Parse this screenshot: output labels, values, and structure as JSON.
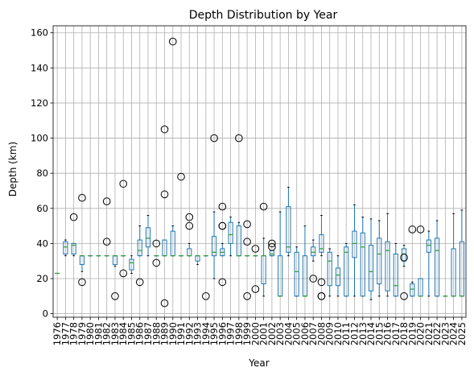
{
  "chart_data": {
    "type": "box",
    "title": "Depth Distribution by Year",
    "xlabel": "Year",
    "ylabel": "Depth (km)",
    "ylim": [
      -2,
      164
    ],
    "yticks": [
      0,
      20,
      40,
      60,
      80,
      100,
      120,
      140,
      160
    ],
    "grid": true,
    "colors": {
      "box": "#1f77b4",
      "median": "#2ca02c",
      "flier": "#000000",
      "grid": "#b0b0b0"
    },
    "categories": [
      "1976",
      "1977",
      "1978",
      "1979",
      "1980",
      "1981",
      "1982",
      "1983",
      "1984",
      "1985",
      "1986",
      "1987",
      "1988",
      "1989",
      "1990",
      "1991",
      "1992",
      "1993",
      "1994",
      "1995",
      "1996",
      "1997",
      "1998",
      "1999",
      "2000",
      "2001",
      "2002",
      "2003",
      "2004",
      "2005",
      "2006",
      "2007",
      "2008",
      "2009",
      "2010",
      "2011",
      "2012",
      "2013",
      "2014",
      "2015",
      "2016",
      "2017",
      "2018",
      "2019",
      "2020",
      "2021",
      "2022",
      "2023",
      "2024",
      "2025"
    ],
    "boxes": [
      {
        "year": "1976",
        "min": 23,
        "q1": 23,
        "med": 23,
        "q3": 23,
        "max": 23,
        "fliers": []
      },
      {
        "year": "1977",
        "min": 33,
        "q1": 34,
        "med": 38,
        "q3": 41,
        "max": 42,
        "fliers": []
      },
      {
        "year": "1978",
        "min": 33,
        "q1": 34,
        "med": 39,
        "q3": 40,
        "max": 40,
        "fliers": [
          55
        ]
      },
      {
        "year": "1979",
        "min": 24,
        "q1": 28,
        "med": 33,
        "q3": 33,
        "max": 33,
        "fliers": [
          66,
          18
        ]
      },
      {
        "year": "1980",
        "min": 33,
        "q1": 33,
        "med": 33,
        "q3": 33,
        "max": 33,
        "fliers": []
      },
      {
        "year": "1981",
        "min": 33,
        "q1": 33,
        "med": 33,
        "q3": 33,
        "max": 33,
        "fliers": []
      },
      {
        "year": "1982",
        "min": 33,
        "q1": 33,
        "med": 33,
        "q3": 33,
        "max": 33,
        "fliers": [
          64,
          41
        ]
      },
      {
        "year": "1983",
        "min": 27,
        "q1": 28,
        "med": 33,
        "q3": 33,
        "max": 33,
        "fliers": [
          10
        ]
      },
      {
        "year": "1984",
        "min": 33,
        "q1": 33,
        "med": 33,
        "q3": 33,
        "max": 33,
        "fliers": [
          74,
          23
        ]
      },
      {
        "year": "1985",
        "min": 23,
        "q1": 25,
        "med": 29,
        "q3": 31,
        "max": 33,
        "fliers": []
      },
      {
        "year": "1986",
        "min": 33,
        "q1": 33,
        "med": 36,
        "q3": 42,
        "max": 50,
        "fliers": [
          18
        ]
      },
      {
        "year": "1987",
        "min": 33,
        "q1": 38,
        "med": 43,
        "q3": 49,
        "max": 56,
        "fliers": []
      },
      {
        "year": "1988",
        "min": 33,
        "q1": 33,
        "med": 33,
        "q3": 33,
        "max": 33,
        "fliers": [
          40,
          29
        ]
      },
      {
        "year": "1989",
        "min": 33,
        "q1": 33,
        "med": 33,
        "q3": 42,
        "max": 42,
        "fliers": [
          105,
          68,
          6
        ]
      },
      {
        "year": "1990",
        "min": 33,
        "q1": 33,
        "med": 33,
        "q3": 47,
        "max": 50,
        "fliers": [
          155
        ]
      },
      {
        "year": "1991",
        "min": 33,
        "q1": 33,
        "med": 33,
        "q3": 33,
        "max": 33,
        "fliers": [
          78
        ]
      },
      {
        "year": "1992",
        "min": 33,
        "q1": 33,
        "med": 33,
        "q3": 37,
        "max": 40,
        "fliers": [
          55,
          50
        ]
      },
      {
        "year": "1993",
        "min": 28,
        "q1": 30,
        "med": 33,
        "q3": 33,
        "max": 33,
        "fliers": []
      },
      {
        "year": "1994",
        "min": 33,
        "q1": 33,
        "med": 33,
        "q3": 33,
        "max": 33,
        "fliers": [
          10
        ]
      },
      {
        "year": "1995",
        "min": 20,
        "q1": 33,
        "med": 35,
        "q3": 44,
        "max": 58,
        "fliers": [
          100
        ]
      },
      {
        "year": "1996",
        "min": 33,
        "q1": 33,
        "med": 35,
        "q3": 37,
        "max": 40,
        "fliers": [
          61,
          50,
          50,
          18
        ]
      },
      {
        "year": "1997",
        "min": 33,
        "q1": 40,
        "med": 45,
        "q3": 52,
        "max": 55,
        "fliers": []
      },
      {
        "year": "1998",
        "min": 33,
        "q1": 33,
        "med": 33,
        "q3": 50,
        "max": 52,
        "fliers": [
          100
        ]
      },
      {
        "year": "1999",
        "min": 33,
        "q1": 33,
        "med": 33,
        "q3": 33,
        "max": 33,
        "fliers": [
          51,
          41,
          10
        ]
      },
      {
        "year": "2000",
        "min": 33,
        "q1": 33,
        "med": 33,
        "q3": 33,
        "max": 33,
        "fliers": [
          37,
          14
        ]
      },
      {
        "year": "2001",
        "min": 10,
        "q1": 17,
        "med": 33,
        "q3": 33,
        "max": 43,
        "fliers": [
          61
        ]
      },
      {
        "year": "2002",
        "min": 33,
        "q1": 33,
        "med": 34,
        "q3": 36,
        "max": 36,
        "fliers": [
          40,
          38
        ]
      },
      {
        "year": "2003",
        "min": 10,
        "q1": 10,
        "med": 10,
        "q3": 33,
        "max": 58,
        "fliers": []
      },
      {
        "year": "2004",
        "min": 33,
        "q1": 35,
        "med": 38,
        "q3": 61,
        "max": 72,
        "fliers": []
      },
      {
        "year": "2005",
        "min": 10,
        "q1": 10,
        "med": 24,
        "q3": 35,
        "max": 38,
        "fliers": []
      },
      {
        "year": "2006",
        "min": 10,
        "q1": 10,
        "med": 10,
        "q3": 33,
        "max": 50,
        "fliers": []
      },
      {
        "year": "2007",
        "min": 30,
        "q1": 33,
        "med": 35,
        "q3": 38,
        "max": 42,
        "fliers": [
          20
        ]
      },
      {
        "year": "2008",
        "min": 33,
        "q1": 35,
        "med": 37,
        "q3": 45,
        "max": 56,
        "fliers": [
          18,
          10,
          10
        ]
      },
      {
        "year": "2009",
        "min": 10,
        "q1": 16,
        "med": 30,
        "q3": 35,
        "max": 37,
        "fliers": []
      },
      {
        "year": "2010",
        "min": 10,
        "q1": 16,
        "med": 22,
        "q3": 26,
        "max": 33,
        "fliers": []
      },
      {
        "year": "2011",
        "min": 10,
        "q1": 10,
        "med": 35,
        "q3": 38,
        "max": 40,
        "fliers": []
      },
      {
        "year": "2012",
        "min": 10,
        "q1": 32,
        "med": 40,
        "q3": 47,
        "max": 62,
        "fliers": []
      },
      {
        "year": "2013",
        "min": 10,
        "q1": 10,
        "med": 38,
        "q3": 46,
        "max": 55,
        "fliers": []
      },
      {
        "year": "2014",
        "min": 8,
        "q1": 13,
        "med": 24,
        "q3": 39,
        "max": 54,
        "fliers": []
      },
      {
        "year": "2015",
        "min": 10,
        "q1": 17,
        "med": 34,
        "q3": 43,
        "max": 53,
        "fliers": []
      },
      {
        "year": "2016",
        "min": 10,
        "q1": 13,
        "med": 36,
        "q3": 41,
        "max": 57,
        "fliers": []
      },
      {
        "year": "2017",
        "min": 10,
        "q1": 10,
        "med": 16,
        "q3": 34,
        "max": 40,
        "fliers": []
      },
      {
        "year": "2018",
        "min": 27,
        "q1": 30,
        "med": 34,
        "q3": 37,
        "max": 39,
        "fliers": [
          32,
          10
        ]
      },
      {
        "year": "2019",
        "min": 10,
        "q1": 10,
        "med": 14,
        "q3": 17,
        "max": 18,
        "fliers": [
          48
        ]
      },
      {
        "year": "2020",
        "min": 10,
        "q1": 10,
        "med": 10,
        "q3": 20,
        "max": 20,
        "fliers": [
          48
        ]
      },
      {
        "year": "2021",
        "min": 10,
        "q1": 35,
        "med": 39,
        "q3": 42,
        "max": 47,
        "fliers": []
      },
      {
        "year": "2022",
        "min": 10,
        "q1": 10,
        "med": 36,
        "q3": 43,
        "max": 53,
        "fliers": []
      },
      {
        "year": "2023",
        "min": 10,
        "q1": 10,
        "med": 10,
        "q3": 10,
        "max": 10,
        "fliers": []
      },
      {
        "year": "2024",
        "min": 10,
        "q1": 10,
        "med": 10,
        "q3": 37,
        "max": 57,
        "fliers": []
      },
      {
        "year": "2025",
        "min": 10,
        "q1": 10,
        "med": 10,
        "q3": 41,
        "max": 59,
        "fliers": []
      }
    ]
  }
}
